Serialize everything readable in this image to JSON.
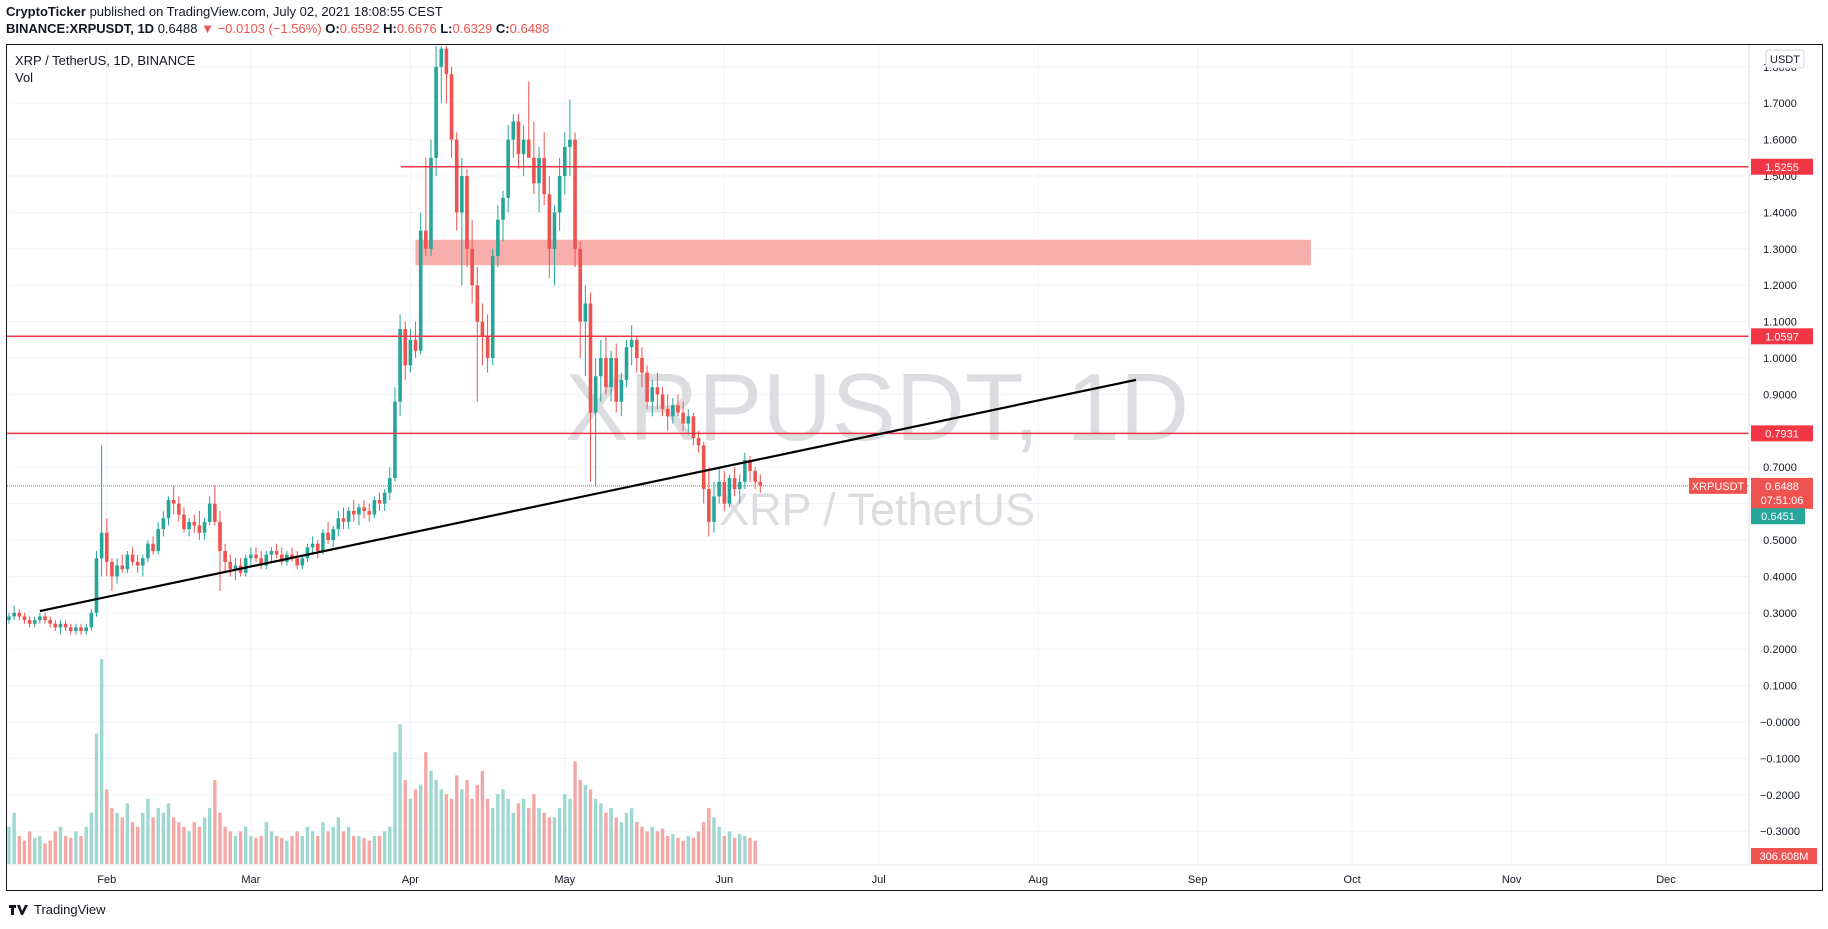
{
  "header": {
    "author": "CryptoTicker",
    "published_text": " published on TradingView.com, July 02, 2021 18:08:55 CEST",
    "symbol_line": "BINANCE:XRPUSDT, 1D",
    "last": "0.6488",
    "change": "▼ −0.0103 (−1.56%)",
    "o_label": "O:",
    "o_value": "0.6592",
    "h_label": "H:",
    "h_value": "0.6676",
    "l_label": "L:",
    "l_value": "0.6329",
    "c_label": "C:",
    "c_value": "0.6488"
  },
  "legend": {
    "title": "XRP / TetherUS, 1D, BINANCE",
    "vol": "Vol"
  },
  "watermark": {
    "main": "XRPUSDT, 1D",
    "sub": "XRP / TetherUS"
  },
  "currency_badge": "USDT",
  "footer": {
    "brand": "TradingView"
  },
  "chart_data": {
    "type": "candlestick",
    "symbol": "XRPUSDT",
    "timeframe": "1D",
    "exchange": "BINANCE",
    "y_ticks": [
      "1.8000",
      "1.7000",
      "1.6000",
      "1.5000",
      "1.4000",
      "1.3000",
      "1.2000",
      "1.1000",
      "1.0000",
      "0.9000",
      "0.8000",
      "0.7000",
      "0.6000",
      "0.5000",
      "0.4000",
      "0.3000",
      "0.2000",
      "0.1000",
      "−0.0000",
      "−0.1000",
      "−0.2000",
      "−0.3000"
    ],
    "x_ticks": [
      "Feb",
      "Mar",
      "Apr",
      "May",
      "Jun",
      "Jul",
      "Aug",
      "Sep",
      "Oct",
      "Nov",
      "Dec"
    ],
    "ylim": [
      -0.39,
      1.86
    ],
    "start_date": "2021-01-13",
    "horizontal_lines": [
      {
        "price": 1.5255,
        "label": "1.5255",
        "color": "#f23645"
      },
      {
        "price": 1.0597,
        "label": "1.0597",
        "color": "#f23645"
      },
      {
        "price": 0.7931,
        "label": "0.7931",
        "color": "#f23645"
      }
    ],
    "zone": {
      "from": 1.255,
      "to": 1.325,
      "start": "2021-04-02",
      "end": "2021-09-23",
      "color": "#f8aaa8"
    },
    "trendline": {
      "start": {
        "date": "2021-01-19",
        "price": 0.305
      },
      "end": {
        "date": "2021-08-20",
        "price": 0.94
      }
    },
    "last_price": {
      "label": "XRPUSDT",
      "value": "0.6488",
      "countdown": "07:51:06",
      "color": "#ef5350"
    },
    "bid_price": {
      "value": "0.6451",
      "color": "#26a69a"
    },
    "volume_label": "306.608M",
    "up_color": "#26a69a",
    "down_color": "#ef5350",
    "candles": [
      [
        0.28,
        0.3,
        0.27,
        0.29
      ],
      [
        0.29,
        0.32,
        0.28,
        0.3
      ],
      [
        0.3,
        0.31,
        0.28,
        0.29
      ],
      [
        0.29,
        0.3,
        0.27,
        0.28
      ],
      [
        0.28,
        0.29,
        0.26,
        0.27
      ],
      [
        0.27,
        0.29,
        0.26,
        0.28
      ],
      [
        0.28,
        0.3,
        0.27,
        0.29
      ],
      [
        0.29,
        0.3,
        0.27,
        0.28
      ],
      [
        0.28,
        0.29,
        0.26,
        0.27
      ],
      [
        0.27,
        0.28,
        0.25,
        0.26
      ],
      [
        0.26,
        0.28,
        0.24,
        0.27
      ],
      [
        0.27,
        0.28,
        0.25,
        0.26
      ],
      [
        0.26,
        0.27,
        0.24,
        0.25
      ],
      [
        0.25,
        0.27,
        0.24,
        0.26
      ],
      [
        0.26,
        0.27,
        0.24,
        0.25
      ],
      [
        0.25,
        0.27,
        0.24,
        0.26
      ],
      [
        0.26,
        0.31,
        0.25,
        0.3
      ],
      [
        0.3,
        0.47,
        0.29,
        0.45
      ],
      [
        0.45,
        0.76,
        0.4,
        0.52
      ],
      [
        0.52,
        0.56,
        0.4,
        0.44
      ],
      [
        0.44,
        0.45,
        0.36,
        0.4
      ],
      [
        0.4,
        0.45,
        0.38,
        0.43
      ],
      [
        0.43,
        0.46,
        0.41,
        0.42
      ],
      [
        0.42,
        0.47,
        0.41,
        0.46
      ],
      [
        0.46,
        0.48,
        0.43,
        0.44
      ],
      [
        0.44,
        0.46,
        0.41,
        0.43
      ],
      [
        0.43,
        0.46,
        0.4,
        0.45
      ],
      [
        0.45,
        0.5,
        0.44,
        0.49
      ],
      [
        0.49,
        0.51,
        0.46,
        0.47
      ],
      [
        0.47,
        0.55,
        0.46,
        0.53
      ],
      [
        0.53,
        0.58,
        0.51,
        0.56
      ],
      [
        0.56,
        0.62,
        0.54,
        0.61
      ],
      [
        0.61,
        0.65,
        0.57,
        0.6
      ],
      [
        0.6,
        0.62,
        0.55,
        0.57
      ],
      [
        0.57,
        0.59,
        0.52,
        0.53
      ],
      [
        0.53,
        0.56,
        0.51,
        0.55
      ],
      [
        0.55,
        0.57,
        0.52,
        0.54
      ],
      [
        0.54,
        0.58,
        0.5,
        0.52
      ],
      [
        0.52,
        0.56,
        0.5,
        0.55
      ],
      [
        0.55,
        0.62,
        0.54,
        0.6
      ],
      [
        0.6,
        0.65,
        0.54,
        0.55
      ],
      [
        0.55,
        0.58,
        0.36,
        0.47
      ],
      [
        0.47,
        0.49,
        0.41,
        0.44
      ],
      [
        0.44,
        0.46,
        0.4,
        0.42
      ],
      [
        0.42,
        0.45,
        0.39,
        0.43
      ],
      [
        0.43,
        0.45,
        0.4,
        0.41
      ],
      [
        0.41,
        0.46,
        0.4,
        0.45
      ],
      [
        0.45,
        0.48,
        0.43,
        0.46
      ],
      [
        0.46,
        0.48,
        0.44,
        0.45
      ],
      [
        0.45,
        0.47,
        0.42,
        0.43
      ],
      [
        0.43,
        0.47,
        0.42,
        0.46
      ],
      [
        0.46,
        0.48,
        0.44,
        0.47
      ],
      [
        0.47,
        0.49,
        0.45,
        0.46
      ],
      [
        0.46,
        0.48,
        0.43,
        0.44
      ],
      [
        0.44,
        0.47,
        0.43,
        0.46
      ],
      [
        0.46,
        0.48,
        0.44,
        0.45
      ],
      [
        0.45,
        0.47,
        0.42,
        0.43
      ],
      [
        0.43,
        0.46,
        0.42,
        0.45
      ],
      [
        0.45,
        0.49,
        0.44,
        0.48
      ],
      [
        0.48,
        0.51,
        0.46,
        0.49
      ],
      [
        0.49,
        0.5,
        0.45,
        0.47
      ],
      [
        0.47,
        0.53,
        0.46,
        0.52
      ],
      [
        0.52,
        0.55,
        0.49,
        0.5
      ],
      [
        0.5,
        0.54,
        0.48,
        0.53
      ],
      [
        0.53,
        0.58,
        0.51,
        0.56
      ],
      [
        0.56,
        0.59,
        0.53,
        0.55
      ],
      [
        0.55,
        0.59,
        0.53,
        0.58
      ],
      [
        0.58,
        0.61,
        0.55,
        0.57
      ],
      [
        0.57,
        0.6,
        0.54,
        0.59
      ],
      [
        0.59,
        0.61,
        0.56,
        0.58
      ],
      [
        0.58,
        0.6,
        0.55,
        0.57
      ],
      [
        0.57,
        0.62,
        0.56,
        0.61
      ],
      [
        0.61,
        0.63,
        0.58,
        0.6
      ],
      [
        0.6,
        0.64,
        0.58,
        0.63
      ],
      [
        0.63,
        0.7,
        0.61,
        0.67
      ],
      [
        0.67,
        0.92,
        0.66,
        0.88
      ],
      [
        0.88,
        1.12,
        0.84,
        1.08
      ],
      [
        1.08,
        1.1,
        0.94,
        0.98
      ],
      [
        0.98,
        1.08,
        0.96,
        1.05
      ],
      [
        1.05,
        1.1,
        1.0,
        1.02
      ],
      [
        1.02,
        1.4,
        1.01,
        1.35
      ],
      [
        1.35,
        1.55,
        1.28,
        1.3
      ],
      [
        1.3,
        1.6,
        1.28,
        1.55
      ],
      [
        1.55,
        1.86,
        1.5,
        1.8
      ],
      [
        1.8,
        1.96,
        1.7,
        1.85
      ],
      [
        1.85,
        1.9,
        1.7,
        1.78
      ],
      [
        1.78,
        1.8,
        1.55,
        1.6
      ],
      [
        1.6,
        1.62,
        1.35,
        1.4
      ],
      [
        1.4,
        1.55,
        1.2,
        1.5
      ],
      [
        1.5,
        1.52,
        1.25,
        1.3
      ],
      [
        1.3,
        1.38,
        1.15,
        1.2
      ],
      [
        1.2,
        1.25,
        0.88,
        1.1
      ],
      [
        1.1,
        1.15,
        0.98,
        1.06
      ],
      [
        1.06,
        1.12,
        0.96,
        1.0
      ],
      [
        1.0,
        1.3,
        0.98,
        1.28
      ],
      [
        1.28,
        1.42,
        1.25,
        1.38
      ],
      [
        1.38,
        1.46,
        1.32,
        1.44
      ],
      [
        1.44,
        1.64,
        1.4,
        1.6
      ],
      [
        1.6,
        1.67,
        1.55,
        1.65
      ],
      [
        1.65,
        1.67,
        1.52,
        1.56
      ],
      [
        1.56,
        1.64,
        1.5,
        1.6
      ],
      [
        1.6,
        1.76,
        1.56,
        1.55
      ],
      [
        1.55,
        1.65,
        1.45,
        1.48
      ],
      [
        1.48,
        1.58,
        1.4,
        1.55
      ],
      [
        1.55,
        1.62,
        1.42,
        1.45
      ],
      [
        1.45,
        1.5,
        1.22,
        1.3
      ],
      [
        1.3,
        1.42,
        1.2,
        1.4
      ],
      [
        1.4,
        1.55,
        1.35,
        1.5
      ],
      [
        1.5,
        1.62,
        1.45,
        1.58
      ],
      [
        1.58,
        1.71,
        1.5,
        1.6
      ],
      [
        1.6,
        1.62,
        1.25,
        1.3
      ],
      [
        1.3,
        1.32,
        1.0,
        1.1
      ],
      [
        1.1,
        1.2,
        0.95,
        1.15
      ],
      [
        1.15,
        1.18,
        0.66,
        0.85
      ],
      [
        0.85,
        1.0,
        0.65,
        0.95
      ],
      [
        0.95,
        1.05,
        0.88,
        1.0
      ],
      [
        1.0,
        1.06,
        0.9,
        0.92
      ],
      [
        0.92,
        1.02,
        0.88,
        1.0
      ],
      [
        1.0,
        1.04,
        0.85,
        0.88
      ],
      [
        0.88,
        0.96,
        0.84,
        0.94
      ],
      [
        0.94,
        1.05,
        0.92,
        1.03
      ],
      [
        1.03,
        1.09,
        0.98,
        1.05
      ],
      [
        1.05,
        1.06,
        0.96,
        1.0
      ],
      [
        1.0,
        1.03,
        0.92,
        0.96
      ],
      [
        0.96,
        0.98,
        0.86,
        0.88
      ],
      [
        0.88,
        0.94,
        0.84,
        0.92
      ],
      [
        0.92,
        0.96,
        0.86,
        0.9
      ],
      [
        0.9,
        0.92,
        0.84,
        0.86
      ],
      [
        0.86,
        0.9,
        0.8,
        0.84
      ],
      [
        0.84,
        0.89,
        0.82,
        0.87
      ],
      [
        0.87,
        0.9,
        0.84,
        0.85
      ],
      [
        0.85,
        0.88,
        0.8,
        0.82
      ],
      [
        0.82,
        0.86,
        0.79,
        0.84
      ],
      [
        0.84,
        0.85,
        0.76,
        0.78
      ],
      [
        0.78,
        0.8,
        0.74,
        0.76
      ],
      [
        0.76,
        0.77,
        0.6,
        0.64
      ],
      [
        0.64,
        0.7,
        0.51,
        0.55
      ],
      [
        0.55,
        0.66,
        0.52,
        0.62
      ],
      [
        0.62,
        0.7,
        0.6,
        0.66
      ],
      [
        0.66,
        0.69,
        0.58,
        0.6
      ],
      [
        0.6,
        0.68,
        0.59,
        0.67
      ],
      [
        0.67,
        0.7,
        0.62,
        0.64
      ],
      [
        0.64,
        0.68,
        0.6,
        0.66
      ],
      [
        0.66,
        0.74,
        0.64,
        0.72
      ],
      [
        0.72,
        0.73,
        0.66,
        0.69
      ],
      [
        0.69,
        0.7,
        0.64,
        0.66
      ],
      [
        0.66,
        0.68,
        0.63,
        0.65
      ]
    ],
    "volumes": [
      40,
      55,
      30,
      25,
      35,
      28,
      30,
      22,
      25,
      35,
      40,
      30,
      28,
      35,
      30,
      40,
      55,
      140,
      220,
      80,
      60,
      55,
      50,
      65,
      45,
      40,
      55,
      70,
      50,
      60,
      55,
      65,
      50,
      45,
      40,
      35,
      45,
      40,
      50,
      60,
      90,
      55,
      40,
      35,
      30,
      35,
      40,
      30,
      28,
      30,
      45,
      35,
      30,
      28,
      25,
      30,
      35,
      30,
      40,
      35,
      30,
      45,
      35,
      40,
      50,
      35,
      40,
      30,
      30,
      28,
      25,
      30,
      30,
      35,
      40,
      120,
      150,
      90,
      70,
      80,
      85,
      120,
      100,
      90,
      80,
      75,
      70,
      95,
      80,
      90,
      70,
      85,
      100,
      70,
      60,
      75,
      80,
      70,
      55,
      65,
      70,
      60,
      75,
      60,
      55,
      50,
      50,
      60,
      75,
      70,
      110,
      90,
      85,
      80,
      70,
      65,
      55,
      60,
      50,
      45,
      55,
      60,
      45,
      40,
      35,
      40,
      35,
      38,
      30,
      32,
      28,
      25,
      30,
      28,
      35,
      45,
      60,
      50,
      40,
      30,
      35,
      28,
      32,
      30,
      28,
      25
    ]
  }
}
